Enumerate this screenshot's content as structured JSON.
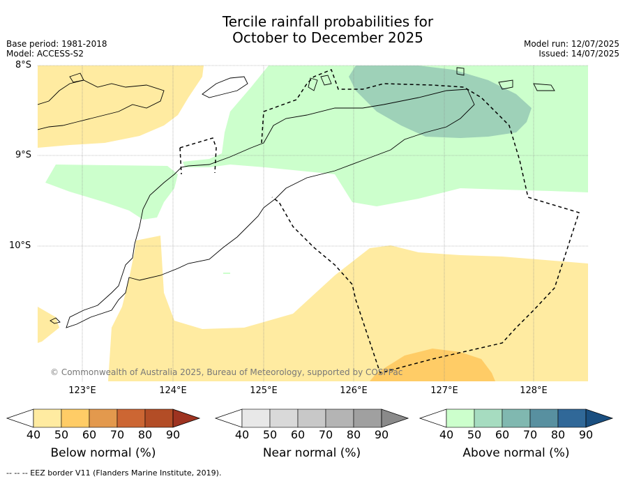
{
  "title_line1": "Tercile rainfall probabilities for",
  "title_line2": "October to December 2025",
  "base_period": "Base period: 1981-2018",
  "model": "Model: ACCESS-S2",
  "model_run": "Model run: 12/07/2025",
  "issued": "Issued: 14/07/2025",
  "map": {
    "lat_labels": [
      "8°S",
      "9°S",
      "10°S"
    ],
    "lon_labels": [
      "123°E",
      "124°E",
      "125°E",
      "126°E",
      "127°E",
      "128°E"
    ],
    "copyright": "© Commonwealth of Australia 2025, Bureau of Meteorology, supported by COSPPac",
    "colors": {
      "below_40": "#ffeba1",
      "below_50": "#ffcc66",
      "above_40": "#ccffcc",
      "above_50": "#9ed1b8"
    }
  },
  "colorbars": [
    {
      "label": "Below normal (%)",
      "ticks": [
        "40",
        "50",
        "60",
        "70",
        "80",
        "90"
      ],
      "colors": [
        "#ffeba1",
        "#ffcc66",
        "#e3994d",
        "#cc6633",
        "#b34d26",
        "#9e3320"
      ]
    },
    {
      "label": "Near normal (%)",
      "ticks": [
        "40",
        "50",
        "60",
        "70",
        "80",
        "90"
      ],
      "colors": [
        "#e8e8e8",
        "#d9d9d9",
        "#c8c8c8",
        "#b4b4b4",
        "#a0a0a0",
        "#8a8a8a"
      ]
    },
    {
      "label": "Above normal (%)",
      "ticks": [
        "40",
        "50",
        "60",
        "70",
        "80",
        "90"
      ],
      "colors": [
        "#ccffcc",
        "#a6dcc0",
        "#80b8b0",
        "#5890a0",
        "#306898",
        "#1a4f80"
      ]
    }
  ],
  "footer": "--  --  -- EEZ border V11 (Flanders Marine Institute, 2019)."
}
